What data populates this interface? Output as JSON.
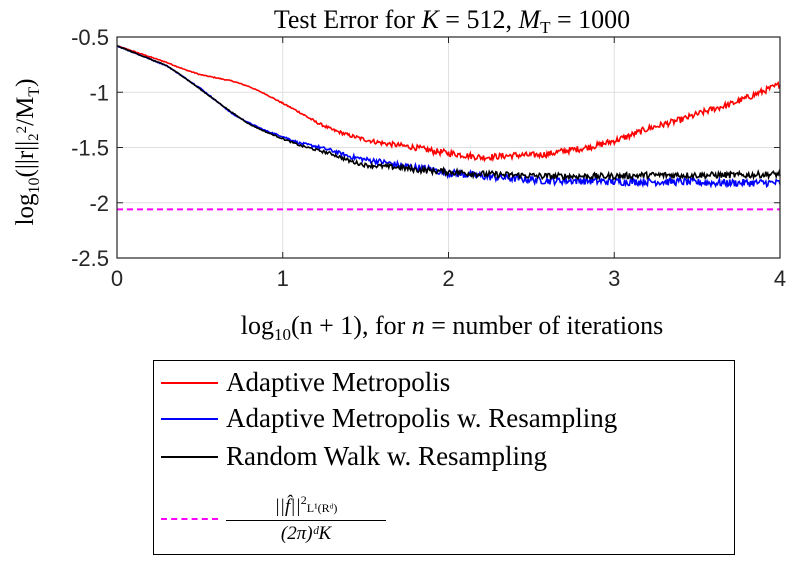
{
  "chart_data": {
    "type": "line",
    "title": "Test Error for K = 512, M_T = 1000",
    "title_parts": {
      "prefix": "Test Error for ",
      "k_var": "K",
      "k_val": " = 512, ",
      "m_var": "M",
      "m_sub": "T",
      "m_val": " = 1000"
    },
    "xlabel": "log10(n + 1), for n = number of iterations",
    "xlabel_parts": {
      "fn": "log",
      "sub": "10",
      "arg": "(n + 1), for ",
      "n": "n",
      "rest": " = number of iterations"
    },
    "ylabel": "log10(||r||2^2 / M_T)",
    "ylabel_parts": {
      "fn": "log",
      "sub": "10",
      "arg": "(||r||",
      "sub2": "2",
      "sup2": "2",
      "div": "/M",
      "msub": "T",
      "close": ")"
    },
    "xlim": [
      0,
      4
    ],
    "ylim": [
      -2.5,
      -0.5
    ],
    "x_ticks": [
      0,
      1,
      2,
      3,
      4
    ],
    "x_tick_labels": [
      "0",
      "1",
      "2",
      "3",
      "4"
    ],
    "y_ticks": [
      -2.5,
      -2,
      -1.5,
      -1,
      -0.5
    ],
    "y_tick_labels": [
      "-2.5",
      "-2",
      "-1.5",
      "-1",
      "-0.5"
    ],
    "grid": true,
    "legend_position": "below",
    "series": [
      {
        "name": "Adaptive Metropolis",
        "color": "#ff0000",
        "style": "solid",
        "noise": 0.025,
        "x": [
          0,
          0.1,
          0.2,
          0.3,
          0.4,
          0.5,
          0.6,
          0.7,
          0.8,
          0.9,
          1.0,
          1.1,
          1.2,
          1.3,
          1.4,
          1.5,
          1.6,
          1.7,
          1.8,
          1.9,
          2.0,
          2.1,
          2.2,
          2.3,
          2.4,
          2.5,
          2.6,
          2.7,
          2.8,
          2.9,
          3.0,
          3.1,
          3.2,
          3.3,
          3.4,
          3.5,
          3.6,
          3.7,
          3.8,
          3.9,
          4.0
        ],
        "y": [
          -0.58,
          -0.63,
          -0.68,
          -0.73,
          -0.79,
          -0.84,
          -0.87,
          -0.9,
          -0.95,
          -1.02,
          -1.1,
          -1.18,
          -1.27,
          -1.34,
          -1.39,
          -1.43,
          -1.46,
          -1.48,
          -1.5,
          -1.53,
          -1.55,
          -1.57,
          -1.59,
          -1.58,
          -1.57,
          -1.57,
          -1.56,
          -1.53,
          -1.51,
          -1.48,
          -1.44,
          -1.39,
          -1.33,
          -1.29,
          -1.25,
          -1.2,
          -1.15,
          -1.11,
          -1.05,
          -0.99,
          -0.93
        ]
      },
      {
        "name": "Adaptive Metropolis w. Resampling",
        "color": "#0000ff",
        "style": "solid",
        "noise": 0.03,
        "x": [
          0,
          0.1,
          0.2,
          0.3,
          0.4,
          0.5,
          0.6,
          0.7,
          0.8,
          0.9,
          1.0,
          1.1,
          1.2,
          1.3,
          1.4,
          1.5,
          1.6,
          1.7,
          1.8,
          1.9,
          2.0,
          2.2,
          2.4,
          2.6,
          2.8,
          3.0,
          3.2,
          3.4,
          3.6,
          3.8,
          4.0
        ],
        "y": [
          -0.58,
          -0.64,
          -0.7,
          -0.76,
          -0.86,
          -0.96,
          -1.08,
          -1.2,
          -1.28,
          -1.35,
          -1.4,
          -1.46,
          -1.49,
          -1.53,
          -1.58,
          -1.61,
          -1.63,
          -1.66,
          -1.68,
          -1.7,
          -1.73,
          -1.76,
          -1.78,
          -1.8,
          -1.8,
          -1.81,
          -1.81,
          -1.81,
          -1.82,
          -1.82,
          -1.82
        ]
      },
      {
        "name": "Random Walk w. Resampling",
        "color": "#000000",
        "style": "solid",
        "noise": 0.025,
        "x": [
          0,
          0.1,
          0.2,
          0.3,
          0.4,
          0.5,
          0.6,
          0.7,
          0.8,
          0.9,
          1.0,
          1.1,
          1.2,
          1.3,
          1.4,
          1.5,
          1.6,
          1.7,
          1.8,
          1.9,
          2.0,
          2.2,
          2.4,
          2.6,
          2.8,
          3.0,
          3.2,
          3.4,
          3.6,
          3.8,
          4.0
        ],
        "y": [
          -0.58,
          -0.64,
          -0.7,
          -0.76,
          -0.86,
          -0.97,
          -1.08,
          -1.19,
          -1.29,
          -1.36,
          -1.42,
          -1.48,
          -1.52,
          -1.56,
          -1.62,
          -1.66,
          -1.67,
          -1.68,
          -1.7,
          -1.71,
          -1.72,
          -1.74,
          -1.75,
          -1.76,
          -1.76,
          -1.76,
          -1.75,
          -1.75,
          -1.75,
          -1.75,
          -1.74
        ]
      },
      {
        "name": "||f̂||²_{L¹(R^d)} / ((2π)^d K)",
        "color": "#ff00ff",
        "style": "dashed",
        "x": [
          0,
          4
        ],
        "y": [
          -2.06,
          -2.06
        ]
      }
    ],
    "legend_labels": {
      "am": "Adaptive Metropolis",
      "amr": "Adaptive Metropolis w. Resampling",
      "rwr": "Random Walk w. Resampling",
      "bound_num_f": "||f̂||",
      "bound_num_sup": "2",
      "bound_num_sub": "L¹(Rᵈ)",
      "bound_den": "(2π)ᵈK"
    }
  }
}
